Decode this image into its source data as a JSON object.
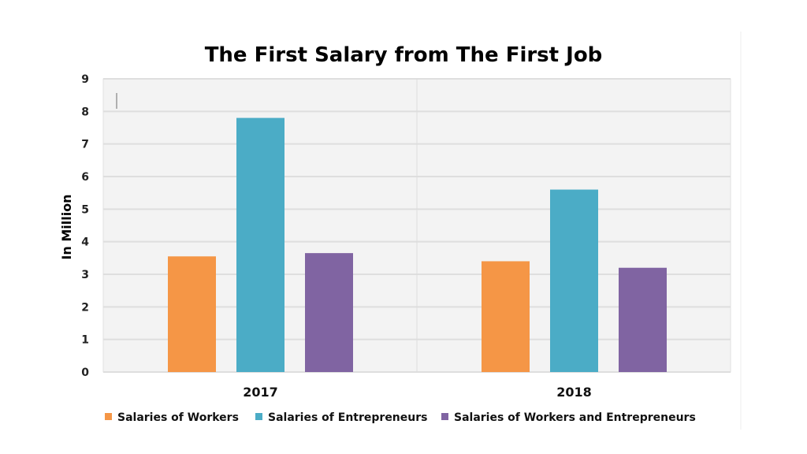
{
  "chart_data": {
    "type": "bar",
    "title": "The First Salary from The First Job",
    "xlabel": "",
    "ylabel": "In Million",
    "ylim": [
      0,
      9
    ],
    "yticks": [
      0,
      1,
      2,
      3,
      4,
      5,
      6,
      7,
      8,
      9
    ],
    "grid": true,
    "legend_position": "bottom",
    "categories": [
      "2017",
      "2018"
    ],
    "series": [
      {
        "name": "Salaries of Workers",
        "color": "#F59646",
        "values": [
          3.55,
          3.4
        ]
      },
      {
        "name": "Salaries of Entrepreneurs",
        "color": "#4BACC6",
        "values": [
          7.8,
          5.6
        ]
      },
      {
        "name": "Salaries of Workers and Entrepreneurs",
        "color": "#8064A2",
        "values": [
          3.65,
          3.2
        ]
      }
    ]
  }
}
